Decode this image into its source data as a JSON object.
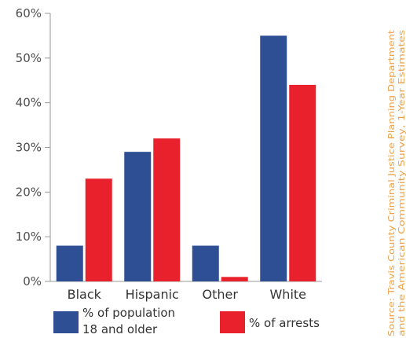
{
  "chart_data": {
    "type": "bar",
    "categories": [
      "Black",
      "Hispanic",
      "Other",
      "White"
    ],
    "series": [
      {
        "name": "% of population 18 and older",
        "values": [
          8,
          29,
          8,
          55
        ]
      },
      {
        "name": "% of arrests",
        "values": [
          23,
          32,
          1,
          44
        ]
      }
    ],
    "ylim": [
      0,
      60
    ],
    "yticks": [
      "0%",
      "10%",
      "20%",
      "30%",
      "40%",
      "50%",
      "60%"
    ],
    "ytick_values": [
      0,
      10,
      20,
      30,
      40,
      50,
      60
    ],
    "grid": false,
    "legend_position": "bottom",
    "legend": [
      {
        "lines": [
          "% of population",
          "18 and older"
        ]
      },
      {
        "lines": [
          "% of arrests"
        ]
      }
    ],
    "colors": [
      "#2e4f93",
      "#e8212c"
    ],
    "axis_color": "#9a9a9a"
  },
  "source": {
    "lines": [
      "Source: Travis County Criminal Justice Planning Department",
      "and the American Community Survey, 1-Year Estimates"
    ],
    "color": "#f0a24a"
  }
}
